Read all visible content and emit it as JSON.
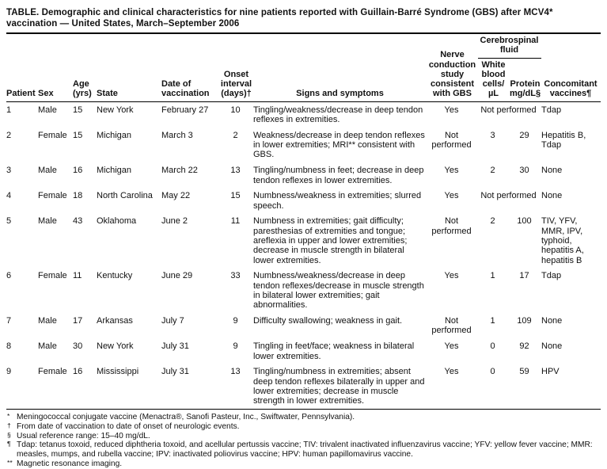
{
  "title": "TABLE. Demographic and clinical characteristics for nine patients reported with Guillain-Barré Syndrome (GBS) after MCV4* vaccination — United States, March–September 2006",
  "table": {
    "headers": {
      "patient": "Patient",
      "sex": "Sex",
      "age": "Age\n(yrs)",
      "state": "State",
      "vaccination_date": "Date of\nvaccination",
      "onset_interval": "Onset\ninterval\n(days)†",
      "signs": "Signs and symptoms",
      "nerve": "Nerve\nconduction\nstudy\nconsistent\nwith GBS",
      "csf_group": "Cerebrospinal\nfluid",
      "wbc": "White\nblood\ncells/µL",
      "protein": "Protein\nmg/dL§",
      "vaccines": "Concomitant\nvaccines¶"
    },
    "not_performed_label": "Not performed",
    "rows": [
      {
        "patient": "1",
        "sex": "Male",
        "age": "15",
        "state": "New York",
        "vaccination_date": "February 27",
        "onset_interval": "10",
        "signs": "Tingling/weakness/decrease in deep tendon reflexes in extremities.",
        "nerve": "Yes",
        "csf_not_performed": true,
        "wbc": "",
        "protein": "",
        "vaccines": "Tdap"
      },
      {
        "patient": "2",
        "sex": "Female",
        "age": "15",
        "state": "Michigan",
        "vaccination_date": "March 3",
        "onset_interval": "2",
        "signs": "Weakness/decrease in deep tendon reflexes in lower extremities; MRI** consistent with GBS.",
        "nerve": "Not performed",
        "csf_not_performed": false,
        "wbc": "3",
        "protein": "29",
        "vaccines": "Hepatitis B, Tdap"
      },
      {
        "patient": "3",
        "sex": "Male",
        "age": "16",
        "state": "Michigan",
        "vaccination_date": "March 22",
        "onset_interval": "13",
        "signs": "Tingling/numbness in feet; decrease in deep tendon reflexes in lower extremities.",
        "nerve": "Yes",
        "csf_not_performed": false,
        "wbc": "2",
        "protein": "30",
        "vaccines": "None"
      },
      {
        "patient": "4",
        "sex": "Female",
        "age": "18",
        "state": "North Carolina",
        "vaccination_date": "May 22",
        "onset_interval": "15",
        "signs": "Numbness/weakness in extremities; slurred speech.",
        "nerve": "Yes",
        "csf_not_performed": true,
        "wbc": "",
        "protein": "",
        "vaccines": "None"
      },
      {
        "patient": "5",
        "sex": "Male",
        "age": "43",
        "state": "Oklahoma",
        "vaccination_date": "June 2",
        "onset_interval": "11",
        "signs": "Numbness in extremities; gait difficulty; paresthesias of extremities and tongue; areflexia in upper and lower extremities; decrease in muscle strength in bilateral lower extremities.",
        "nerve": "Not performed",
        "csf_not_performed": false,
        "wbc": "2",
        "protein": "100",
        "vaccines": "TIV, YFV, MMR, IPV, typhoid, hepatitis A, hepatitis B"
      },
      {
        "patient": "6",
        "sex": "Female",
        "age": "11",
        "state": "Kentucky",
        "vaccination_date": "June 29",
        "onset_interval": "33",
        "signs": "Numbness/weakness/decrease in deep tendon reflexes/decrease in muscle strength in bilateral lower extremities; gait abnormalities.",
        "nerve": "Yes",
        "csf_not_performed": false,
        "wbc": "1",
        "protein": "17",
        "vaccines": "Tdap"
      },
      {
        "patient": "7",
        "sex": "Male",
        "age": "17",
        "state": "Arkansas",
        "vaccination_date": "July 7",
        "onset_interval": "9",
        "signs": "Difficulty swallowing; weakness in gait.",
        "nerve": "Not performed",
        "csf_not_performed": false,
        "wbc": "1",
        "protein": "109",
        "vaccines": "None"
      },
      {
        "patient": "8",
        "sex": "Male",
        "age": "30",
        "state": "New York",
        "vaccination_date": "July 31",
        "onset_interval": "9",
        "signs": "Tingling in feet/face; weakness in bilateral lower extremities.",
        "nerve": "Yes",
        "csf_not_performed": false,
        "wbc": "0",
        "protein": "92",
        "vaccines": "None"
      },
      {
        "patient": "9",
        "sex": "Female",
        "age": "16",
        "state": "Mississippi",
        "vaccination_date": "July 31",
        "onset_interval": "13",
        "signs": "Tingling/numbness in extremities; absent deep tendon reflexes bilaterally in upper and lower extremities; decrease in muscle strength in lower extremities.",
        "nerve": "Yes",
        "csf_not_performed": false,
        "wbc": "0",
        "protein": "59",
        "vaccines": "HPV"
      }
    ]
  },
  "footnotes": [
    {
      "symbol": "*",
      "text": "Meningococcal conjugate vaccine (Menactra®, Sanofi Pasteur, Inc., Swiftwater, Pennsylvania)."
    },
    {
      "symbol": "†",
      "text": "From date of vaccination to date of onset of neurologic events."
    },
    {
      "symbol": "§",
      "text": "Usual reference range: 15–40 mg/dL."
    },
    {
      "symbol": "¶",
      "text": "Tdap: tetanus toxoid, reduced diphtheria toxoid, and acellular pertussis vaccine; TIV: trivalent inactivated influenzavirus vaccine; YFV: yellow fever vaccine; MMR: measles, mumps, and rubella vaccine; IPV: inactivated poliovirus vaccine; HPV: human papillomavirus vaccine."
    },
    {
      "symbol": "**",
      "text": "Magnetic resonance imaging."
    }
  ]
}
